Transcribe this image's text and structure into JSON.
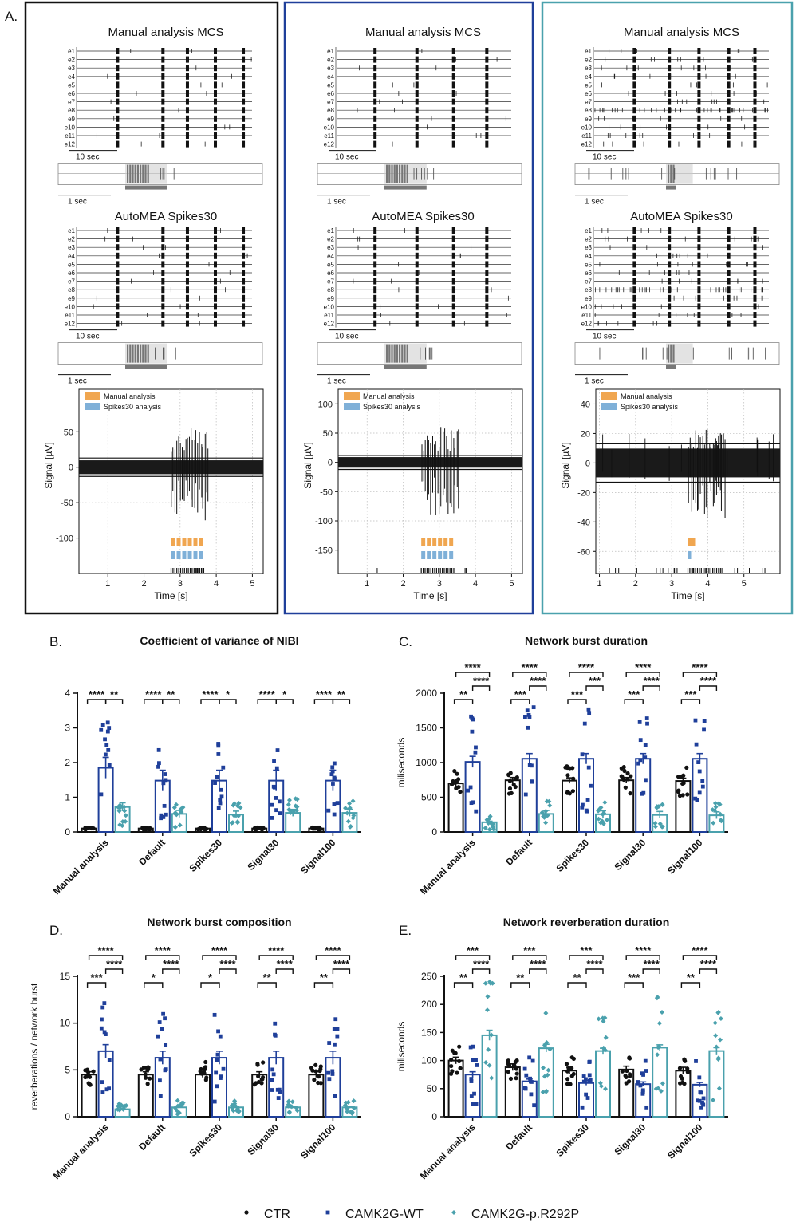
{
  "colors": {
    "ctr": "#111111",
    "wt": "#1f3f9a",
    "mut": "#4aa1ad",
    "manual": "#f0a650",
    "spikes": "#7fb0d8",
    "gridline": "#bbbbbb"
  },
  "panel_a": {
    "label": "A.",
    "columns": [
      {
        "raster_title_1": "Manual analysis MCS",
        "raster_title_2": "AutoMEA Spikes30",
        "scale_long": "10 sec",
        "scale_short": "1 sec",
        "electrodes": [
          "e1",
          "e2",
          "e3",
          "e4",
          "e5",
          "e6",
          "e7",
          "e8",
          "e9",
          "e10",
          "e11",
          "e12"
        ],
        "signal": {
          "ylabel": "Signal [µV]",
          "xlabel": "Time [s]",
          "yticks": [
            "50",
            "0",
            "-50",
            "-100"
          ],
          "ytick_values": [
            50,
            0,
            -50,
            -100
          ],
          "ylim": [
            -150,
            110
          ],
          "xticks": [
            "1",
            "2",
            "3",
            "4",
            "5"
          ],
          "xlim": [
            0.2,
            5.3
          ],
          "threshold": 13,
          "burst_time": 2.75,
          "legend_manual": "Manual analysis",
          "legend_spikes": "Spikes30 analysis"
        }
      },
      {
        "raster_title_1": "Manual analysis MCS",
        "raster_title_2": "AutoMEA Spikes30",
        "scale_long": "10 sec",
        "scale_short": "1 sec",
        "electrodes": [
          "e1",
          "e2",
          "e3",
          "e4",
          "e5",
          "e6",
          "e7",
          "e8",
          "e9",
          "e10",
          "e11",
          "e12"
        ],
        "signal": {
          "ylabel": "Signal [µV]",
          "xlabel": "Time [s]",
          "yticks": [
            "100",
            "50",
            "0",
            "-50",
            "-100",
            "-150"
          ],
          "ytick_values": [
            100,
            50,
            0,
            -50,
            -100,
            -150
          ],
          "ylim": [
            -190,
            125
          ],
          "xticks": [
            "1",
            "2",
            "3",
            "4",
            "5"
          ],
          "xlim": [
            0.2,
            5.3
          ],
          "threshold": 12,
          "burst_time": 2.5,
          "legend_manual": "Manual analysis",
          "legend_spikes": "Spikes30 analysis"
        }
      },
      {
        "raster_title_1": "Manual analysis MCS",
        "raster_title_2": "AutoMEA Spikes30",
        "scale_long": "10 sec",
        "scale_short": "1 sec",
        "electrodes": [
          "e1",
          "e2",
          "e3",
          "e4",
          "e5",
          "e6",
          "e7",
          "e8",
          "e9",
          "e10",
          "e11",
          "e12"
        ],
        "signal": {
          "ylabel": "Signal [µV]",
          "xlabel": "Time [s]",
          "yticks": [
            "40",
            "20",
            "0",
            "-20",
            "-40",
            "-60"
          ],
          "ytick_values": [
            40,
            20,
            0,
            -20,
            -40,
            -60
          ],
          "ylim": [
            -75,
            50
          ],
          "xticks": [
            "1",
            "2",
            "3",
            "4",
            "5"
          ],
          "xlim": [
            0.9,
            6.0
          ],
          "threshold": 13,
          "burst_time": 3.45,
          "legend_manual": "Manual analysis",
          "legend_spikes": "Spikes30 analysis"
        }
      }
    ]
  },
  "chart_data": [
    {
      "type": "bar",
      "panel": "B.",
      "title": "Coefficient of variance of NIBI",
      "ylabel": "",
      "ylim": [
        0,
        4
      ],
      "yticks": [
        "0",
        "1",
        "2",
        "3",
        "4"
      ],
      "ytick_values": [
        0,
        1,
        2,
        3,
        4
      ],
      "categories": [
        "Manual analysis",
        "Default",
        "Spikes30",
        "Signal30",
        "Signal100"
      ],
      "series": [
        {
          "name": "CTR",
          "values": [
            0.1,
            0.1,
            0.1,
            0.1,
            0.1
          ],
          "sem": [
            0.05,
            0.05,
            0.05,
            0.05,
            0.05
          ]
        },
        {
          "name": "CAMK2G-WT",
          "values": [
            1.85,
            1.48,
            1.48,
            1.48,
            1.48
          ],
          "sem": [
            0.3,
            0.3,
            0.3,
            0.3,
            0.3
          ]
        },
        {
          "name": "CAMK2G-p.R292P",
          "values": [
            0.72,
            0.52,
            0.5,
            0.55,
            0.55
          ],
          "sem": [
            0.12,
            0.1,
            0.1,
            0.1,
            0.1
          ]
        }
      ],
      "significance": [
        {
          "labels": [
            "****",
            "**"
          ],
          "pairs": [
            [
              0,
              1
            ],
            [
              1,
              2
            ]
          ]
        },
        {
          "labels": [
            "****",
            "**"
          ],
          "pairs": [
            [
              0,
              1
            ],
            [
              1,
              2
            ]
          ]
        },
        {
          "labels": [
            "****",
            "*"
          ],
          "pairs": [
            [
              0,
              1
            ],
            [
              1,
              2
            ]
          ]
        },
        {
          "labels": [
            "****",
            "*"
          ],
          "pairs": [
            [
              0,
              1
            ],
            [
              1,
              2
            ]
          ]
        },
        {
          "labels": [
            "****",
            "**"
          ],
          "pairs": [
            [
              0,
              1
            ],
            [
              1,
              2
            ]
          ]
        }
      ]
    },
    {
      "type": "bar",
      "panel": "C.",
      "title": "Network burst duration",
      "ylabel": "miliseconds",
      "ylim": [
        0,
        2000
      ],
      "yticks": [
        "0",
        "500",
        "1000",
        "1500",
        "2000"
      ],
      "ytick_values": [
        0,
        500,
        1000,
        1500,
        2000
      ],
      "categories": [
        "Manual analysis",
        "Default",
        "Spikes30",
        "Signal30",
        "Signal100"
      ],
      "series": [
        {
          "name": "CTR",
          "values": [
            700,
            745,
            740,
            745,
            735
          ],
          "sem": [
            40,
            40,
            40,
            40,
            40
          ]
        },
        {
          "name": "CAMK2G-WT",
          "values": [
            1010,
            1055,
            1055,
            1055,
            1055
          ],
          "sem": [
            80,
            75,
            75,
            75,
            75
          ]
        },
        {
          "name": "CAMK2G-p.R292P",
          "values": [
            140,
            260,
            255,
            245,
            240
          ],
          "sem": [
            15,
            50,
            50,
            50,
            50
          ]
        }
      ],
      "significance": [
        {
          "labels": [
            "**",
            "****",
            "****"
          ],
          "pairs": [
            [
              0,
              1
            ],
            [
              1,
              2
            ],
            [
              0,
              2
            ]
          ]
        },
        {
          "labels": [
            "***",
            "****",
            "****"
          ],
          "pairs": [
            [
              0,
              1
            ],
            [
              1,
              2
            ],
            [
              0,
              2
            ]
          ]
        },
        {
          "labels": [
            "***",
            "***",
            "****"
          ],
          "pairs": [
            [
              0,
              1
            ],
            [
              1,
              2
            ],
            [
              0,
              2
            ]
          ]
        },
        {
          "labels": [
            "***",
            "****",
            "****"
          ],
          "pairs": [
            [
              0,
              1
            ],
            [
              1,
              2
            ],
            [
              0,
              2
            ]
          ]
        },
        {
          "labels": [
            "***",
            "****",
            "****"
          ],
          "pairs": [
            [
              0,
              1
            ],
            [
              1,
              2
            ],
            [
              0,
              2
            ]
          ]
        }
      ]
    },
    {
      "type": "bar",
      "panel": "D.",
      "title": "Network burst composition",
      "ylabel": "reverberations / network burst",
      "ylim": [
        0,
        15
      ],
      "yticks": [
        "0",
        "5",
        "10",
        "15"
      ],
      "ytick_values": [
        0,
        5,
        10,
        15
      ],
      "categories": [
        "Manual analysis",
        "Default",
        "Spikes30",
        "Signal30",
        "Signal100"
      ],
      "series": [
        {
          "name": "CTR",
          "values": [
            4.5,
            4.5,
            4.5,
            4.5,
            4.5
          ],
          "sem": [
            0.3,
            0.3,
            0.3,
            0.3,
            0.3
          ]
        },
        {
          "name": "CAMK2G-WT",
          "values": [
            7.0,
            6.3,
            6.3,
            6.3,
            6.3
          ],
          "sem": [
            0.7,
            0.7,
            0.7,
            0.7,
            0.7
          ]
        },
        {
          "name": "CAMK2G-p.R292P",
          "values": [
            0.8,
            1.0,
            1.0,
            1.0,
            1.0
          ],
          "sem": [
            0.1,
            0.05,
            0.05,
            0.05,
            0.05
          ]
        }
      ],
      "significance": [
        {
          "labels": [
            "***",
            "****",
            "****"
          ],
          "pairs": [
            [
              0,
              1
            ],
            [
              1,
              2
            ],
            [
              0,
              2
            ]
          ]
        },
        {
          "labels": [
            "*",
            "****",
            "****"
          ],
          "pairs": [
            [
              0,
              1
            ],
            [
              1,
              2
            ],
            [
              0,
              2
            ]
          ]
        },
        {
          "labels": [
            "*",
            "****",
            "****"
          ],
          "pairs": [
            [
              0,
              1
            ],
            [
              1,
              2
            ],
            [
              0,
              2
            ]
          ]
        },
        {
          "labels": [
            "**",
            "****",
            "****"
          ],
          "pairs": [
            [
              0,
              1
            ],
            [
              1,
              2
            ],
            [
              0,
              2
            ]
          ]
        },
        {
          "labels": [
            "**",
            "****",
            "****"
          ],
          "pairs": [
            [
              0,
              1
            ],
            [
              1,
              2
            ],
            [
              0,
              2
            ]
          ]
        }
      ]
    },
    {
      "type": "bar",
      "panel": "E.",
      "title": "Network reverberation duration",
      "ylabel": "miliseconds",
      "ylim": [
        0,
        250
      ],
      "yticks": [
        "0",
        "50",
        "100",
        "150",
        "200",
        "250"
      ],
      "ytick_values": [
        0,
        50,
        100,
        150,
        200,
        250
      ],
      "categories": [
        "Manual analysis",
        "Default",
        "Spikes30",
        "Signal30",
        "Signal100"
      ],
      "series": [
        {
          "name": "CTR",
          "values": [
            100,
            88,
            82,
            84,
            82
          ],
          "sem": [
            6,
            6,
            6,
            6,
            6
          ]
        },
        {
          "name": "CAMK2G-WT",
          "values": [
            75,
            63,
            60,
            58,
            57
          ],
          "sem": [
            5,
            4,
            4,
            4,
            4
          ]
        },
        {
          "name": "CAMK2G-p.R292P",
          "values": [
            145,
            122,
            117,
            123,
            117
          ],
          "sem": [
            9,
            7,
            5,
            5,
            6
          ]
        }
      ],
      "significance": [
        {
          "labels": [
            "**",
            "****",
            "***"
          ],
          "pairs": [
            [
              0,
              1
            ],
            [
              1,
              2
            ],
            [
              0,
              2
            ]
          ]
        },
        {
          "labels": [
            "**",
            "****",
            "***"
          ],
          "pairs": [
            [
              0,
              1
            ],
            [
              1,
              2
            ],
            [
              0,
              2
            ]
          ]
        },
        {
          "labels": [
            "**",
            "****",
            "***"
          ],
          "pairs": [
            [
              0,
              1
            ],
            [
              1,
              2
            ],
            [
              0,
              2
            ]
          ]
        },
        {
          "labels": [
            "***",
            "****",
            "****"
          ],
          "pairs": [
            [
              0,
              1
            ],
            [
              1,
              2
            ],
            [
              0,
              2
            ]
          ]
        },
        {
          "labels": [
            "**",
            "****",
            "****"
          ],
          "pairs": [
            [
              0,
              1
            ],
            [
              1,
              2
            ],
            [
              0,
              2
            ]
          ]
        }
      ]
    }
  ],
  "legend": [
    {
      "label": "CTR",
      "marker": "circle"
    },
    {
      "label": "CAMK2G-WT",
      "marker": "square"
    },
    {
      "label": "CAMK2G-p.R292P",
      "marker": "diamond"
    }
  ]
}
